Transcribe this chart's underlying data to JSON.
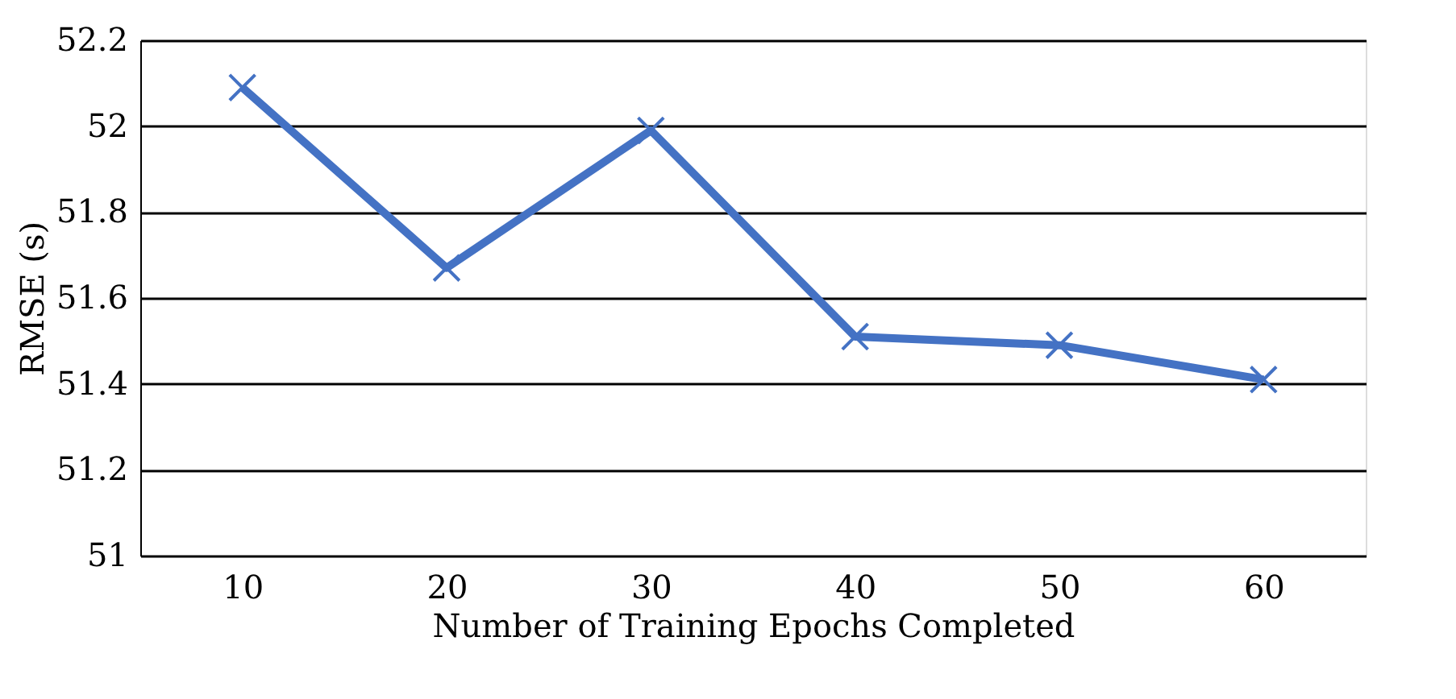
{
  "chart_data": {
    "type": "line",
    "xlabel": "Number of Training Epochs Completed",
    "ylabel": "RMSE (s)",
    "categories": [
      "10",
      "20",
      "30",
      "40",
      "50",
      "60"
    ],
    "series": [
      {
        "color": "#4472c4",
        "values": [
          52.09,
          51.67,
          51.99,
          51.51,
          51.49,
          51.41
        ]
      }
    ],
    "ylim": [
      51,
      52.2
    ],
    "yticks": [
      51,
      51.2,
      51.4,
      51.6,
      51.8,
      52,
      52.2
    ],
    "grid": "y",
    "marker": "cross",
    "line_style": "solid",
    "legend": false
  }
}
